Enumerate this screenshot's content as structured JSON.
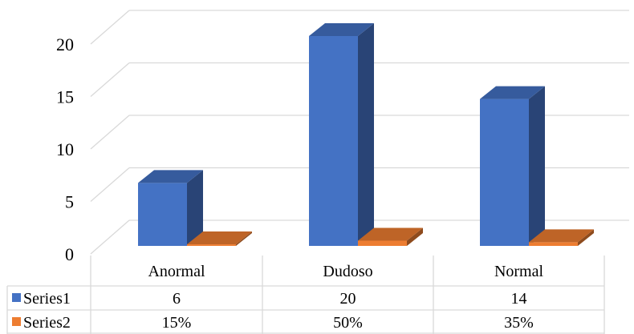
{
  "chart_data": {
    "type": "bar",
    "categories": [
      "Anormal",
      "Dudoso",
      "Normal"
    ],
    "series": [
      {
        "name": "Series1",
        "values": [
          6,
          20,
          14
        ],
        "labels": [
          "6",
          "20",
          "14"
        ],
        "color": "#4472C4"
      },
      {
        "name": "Series2",
        "values": [
          0.15,
          0.5,
          0.35
        ],
        "labels": [
          "15%",
          "50%",
          "35%"
        ],
        "color": "#ED7D31"
      }
    ],
    "yticks": [
      "0",
      "5",
      "10",
      "15",
      "20"
    ],
    "ylim": [
      0,
      20
    ],
    "grid": true,
    "data_table": true,
    "style": "3d-clustered-column"
  }
}
